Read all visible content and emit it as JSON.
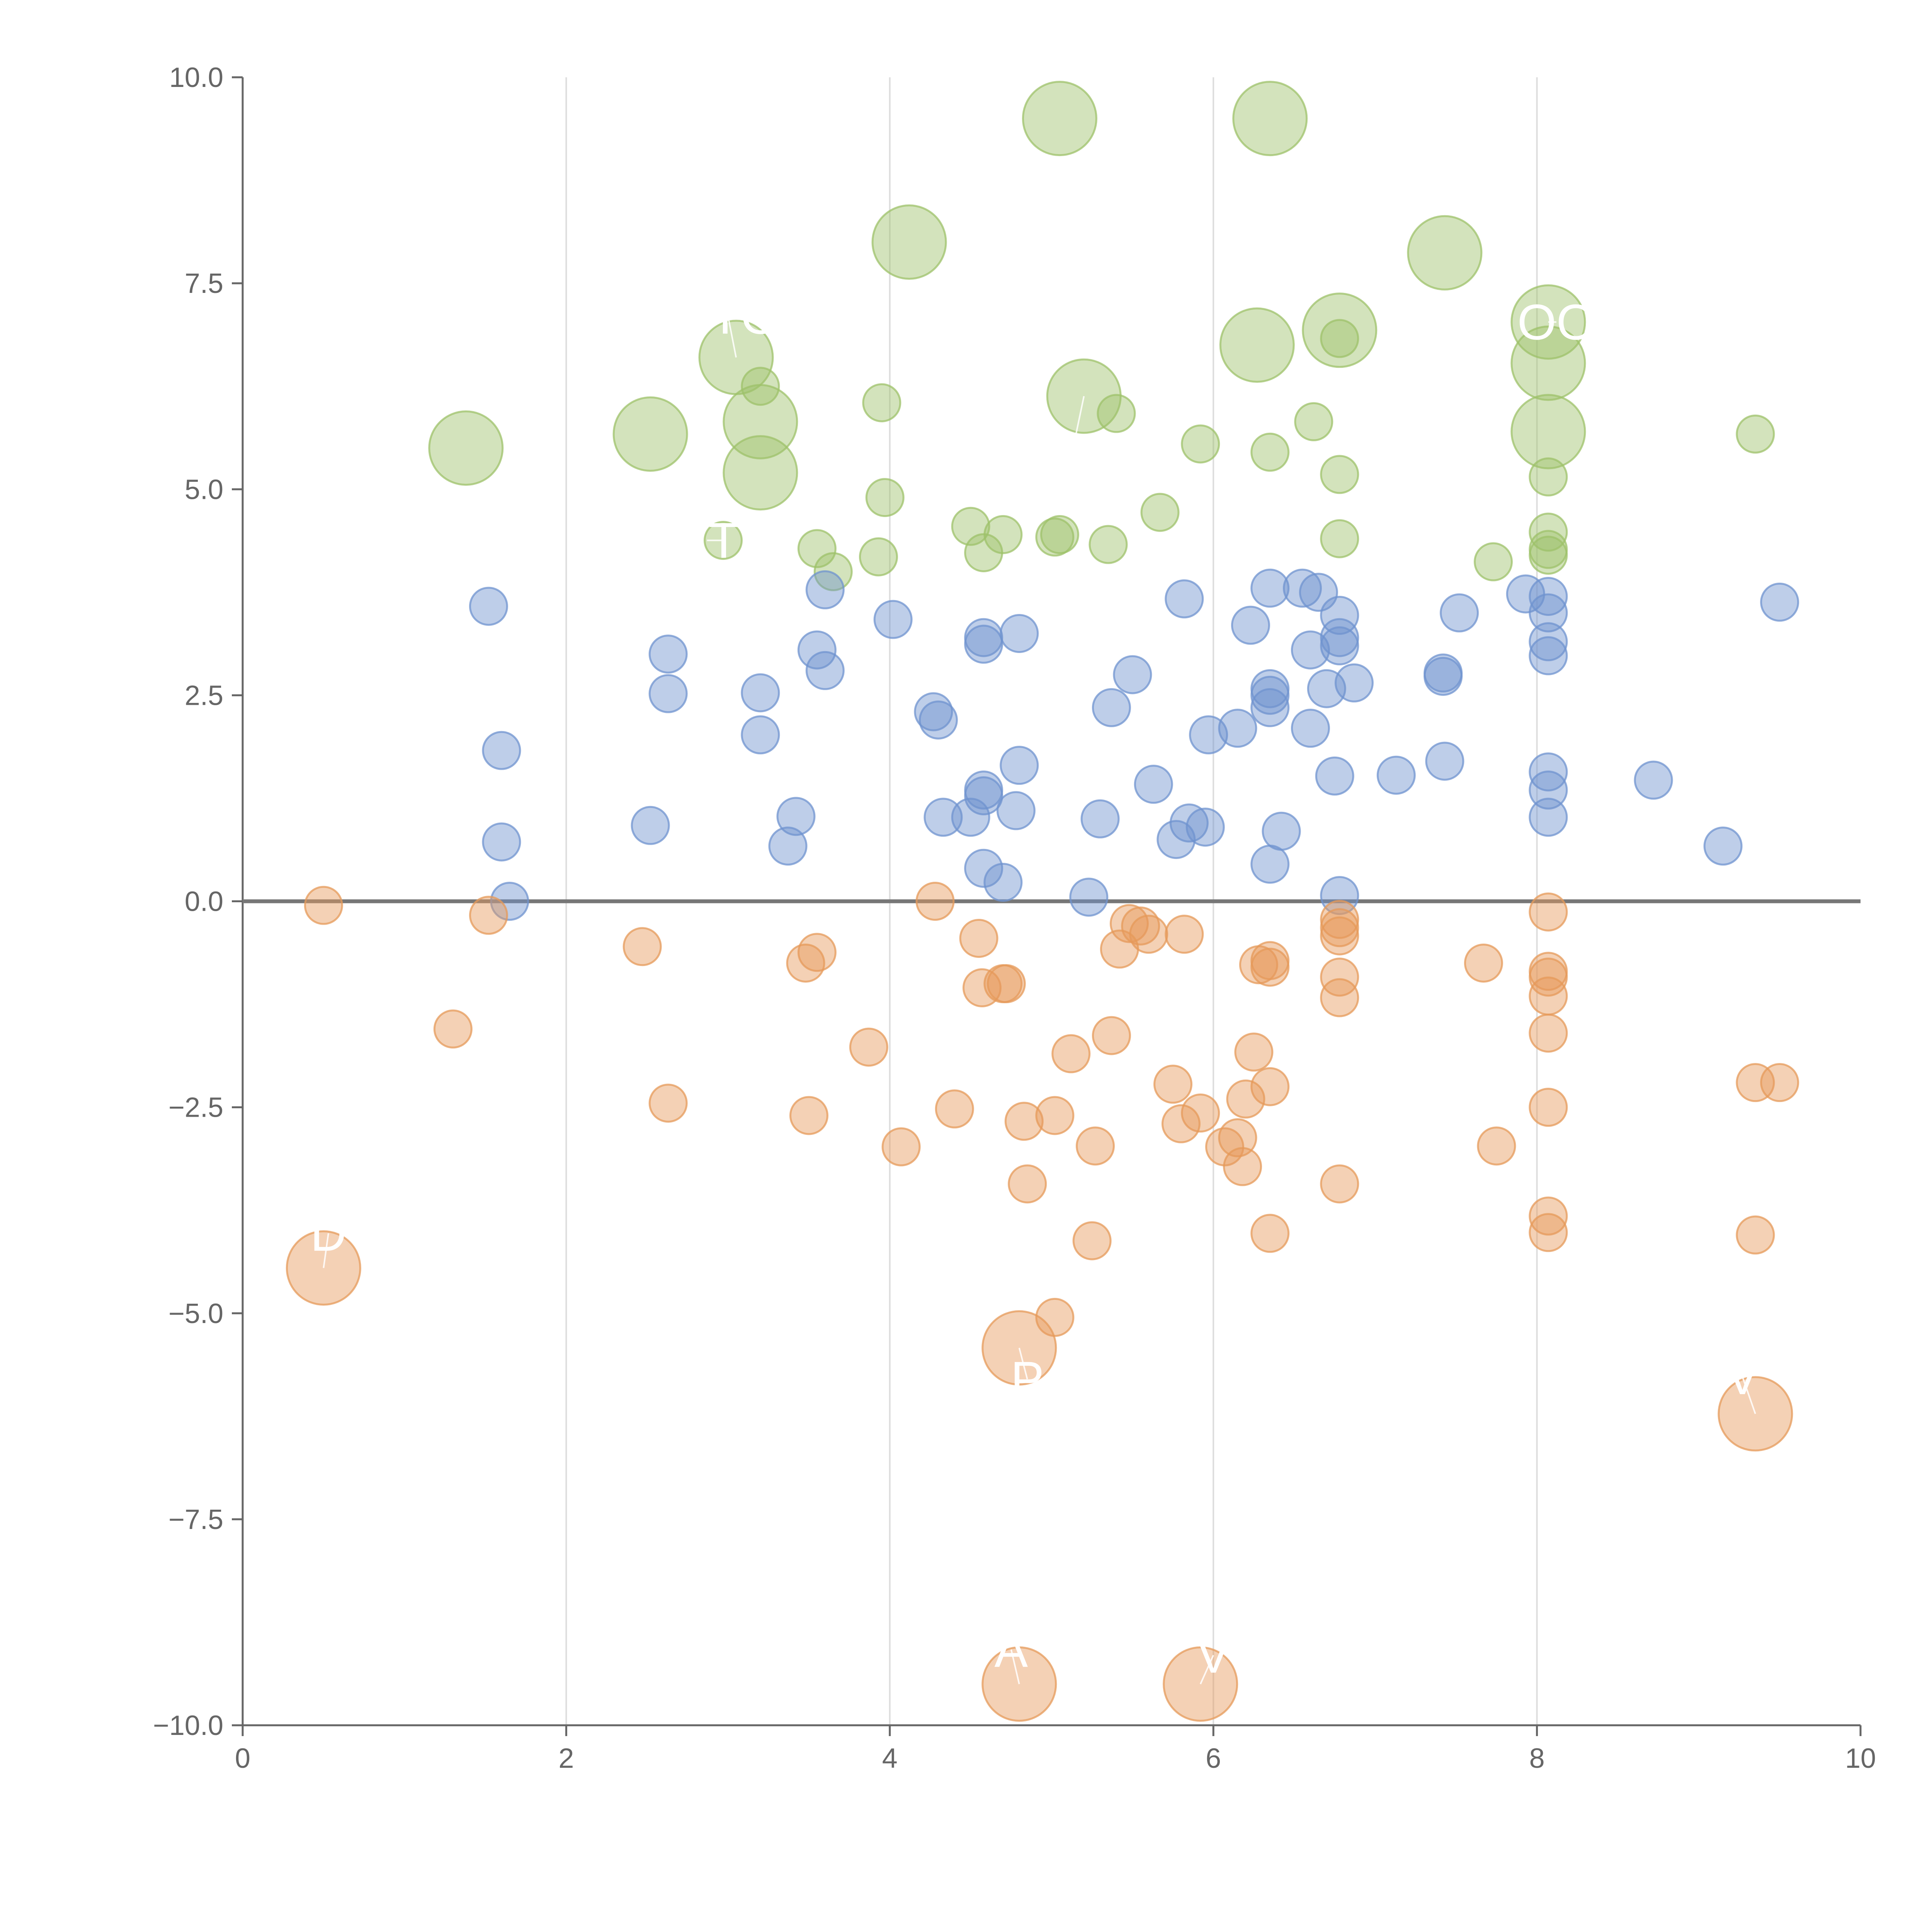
{
  "chart_data": {
    "type": "scatter",
    "title": "",
    "xlabel": "",
    "ylabel": "",
    "xlim": [
      0,
      10
    ],
    "ylim": [
      -10,
      10
    ],
    "x_ticks": [
      "0",
      "2",
      "4",
      "6",
      "8",
      "10"
    ],
    "y_ticks": [
      "10.0",
      "7.5",
      "5.0",
      "2.5",
      "0.0",
      "−2.5",
      "−5.0",
      "−7.5",
      "−10.0"
    ],
    "grid": {
      "vertical": true,
      "horizontal": false
    },
    "zero_line": true,
    "colors": {
      "green": "#9dc16a",
      "blue": "#6f93cf",
      "orange": "#e69a5a"
    },
    "series": [
      {
        "color": "#9dc16a",
        "points": [
          [
            5.05,
            9.5,
            "l"
          ],
          [
            6.35,
            9.5,
            "l"
          ],
          [
            4.12,
            8.0,
            "l"
          ],
          [
            7.43,
            7.87,
            "l"
          ],
          [
            6.27,
            6.75,
            "l"
          ],
          [
            6.78,
            6.93,
            "l"
          ],
          [
            6.78,
            6.83,
            "s"
          ],
          [
            8.07,
            7.03,
            "l"
          ],
          [
            8.07,
            6.53,
            "l"
          ],
          [
            3.05,
            6.6,
            "l"
          ],
          [
            3.2,
            6.25,
            "s"
          ],
          [
            5.2,
            6.13,
            "l"
          ],
          [
            3.2,
            5.82,
            "l"
          ],
          [
            2.52,
            5.67,
            "l"
          ],
          [
            8.07,
            5.7,
            "l"
          ],
          [
            1.38,
            5.5,
            "l"
          ],
          [
            3.2,
            5.2,
            "l"
          ],
          [
            3.95,
            6.05,
            "s"
          ],
          [
            5.4,
            5.92,
            "s"
          ],
          [
            6.62,
            5.82,
            "s"
          ],
          [
            5.92,
            5.55,
            "s"
          ],
          [
            6.35,
            5.45,
            "s"
          ],
          [
            9.35,
            5.67,
            "s"
          ],
          [
            6.78,
            5.18,
            "s"
          ],
          [
            8.07,
            5.15,
            "s"
          ],
          [
            3.97,
            4.9,
            "s"
          ],
          [
            5.67,
            4.72,
            "s"
          ],
          [
            4.5,
            4.55,
            "s"
          ],
          [
            4.7,
            4.45,
            "s"
          ],
          [
            5.02,
            4.42,
            "s"
          ],
          [
            5.05,
            4.45,
            "s"
          ],
          [
            8.07,
            4.48,
            "s"
          ],
          [
            6.78,
            4.4,
            "s"
          ],
          [
            5.35,
            4.33,
            "s"
          ],
          [
            3.55,
            4.28,
            "s"
          ],
          [
            4.58,
            4.23,
            "s"
          ],
          [
            8.07,
            4.27,
            "s"
          ],
          [
            8.07,
            4.2,
            "s"
          ],
          [
            3.93,
            4.18,
            "s"
          ],
          [
            7.73,
            4.12,
            "s"
          ],
          [
            2.97,
            4.38,
            "s"
          ],
          [
            3.65,
            4.0,
            "s"
          ]
        ]
      },
      {
        "color": "#6f93cf",
        "points": [
          [
            1.52,
            3.58
          ],
          [
            3.6,
            3.78
          ],
          [
            4.02,
            3.42
          ],
          [
            5.82,
            3.67
          ],
          [
            6.35,
            3.8
          ],
          [
            6.55,
            3.8
          ],
          [
            6.65,
            3.75
          ],
          [
            6.78,
            3.47
          ],
          [
            7.52,
            3.5
          ],
          [
            7.93,
            3.73
          ],
          [
            8.07,
            3.7
          ],
          [
            8.07,
            3.5
          ],
          [
            8.07,
            3.15
          ],
          [
            8.07,
            2.98
          ],
          [
            9.5,
            3.63
          ],
          [
            2.63,
            3.0
          ],
          [
            3.55,
            3.05
          ],
          [
            4.58,
            3.2
          ],
          [
            4.58,
            3.12
          ],
          [
            4.8,
            3.25
          ],
          [
            6.23,
            3.35
          ],
          [
            6.6,
            3.05
          ],
          [
            6.78,
            3.2
          ],
          [
            6.78,
            3.1
          ],
          [
            3.6,
            2.8
          ],
          [
            2.63,
            2.52
          ],
          [
            3.2,
            2.53
          ],
          [
            5.5,
            2.75
          ],
          [
            6.35,
            2.58
          ],
          [
            6.35,
            2.5
          ],
          [
            6.35,
            2.35
          ],
          [
            6.7,
            2.58
          ],
          [
            6.87,
            2.65
          ],
          [
            7.42,
            2.77
          ],
          [
            7.42,
            2.73
          ],
          [
            4.27,
            2.3
          ],
          [
            4.3,
            2.2
          ],
          [
            5.37,
            2.35
          ],
          [
            6.15,
            2.1
          ],
          [
            6.6,
            2.1
          ],
          [
            5.97,
            2.02
          ],
          [
            3.2,
            2.02
          ],
          [
            1.6,
            1.83
          ],
          [
            4.8,
            1.65
          ],
          [
            6.75,
            1.52
          ],
          [
            7.13,
            1.53
          ],
          [
            7.43,
            1.7
          ],
          [
            8.07,
            1.57
          ],
          [
            8.07,
            1.35
          ],
          [
            8.72,
            1.47
          ],
          [
            5.63,
            1.42
          ],
          [
            4.58,
            1.35
          ],
          [
            4.58,
            1.28
          ],
          [
            3.42,
            1.03
          ],
          [
            4.33,
            1.02
          ],
          [
            4.5,
            1.02
          ],
          [
            4.78,
            1.1
          ],
          [
            5.3,
            1.0
          ],
          [
            5.85,
            0.95
          ],
          [
            5.95,
            0.9
          ],
          [
            5.77,
            0.75
          ],
          [
            6.42,
            0.85
          ],
          [
            8.07,
            1.02
          ],
          [
            2.52,
            0.92
          ],
          [
            1.6,
            0.72
          ],
          [
            3.37,
            0.67
          ],
          [
            9.15,
            0.67
          ],
          [
            4.58,
            0.4
          ],
          [
            4.7,
            0.23
          ],
          [
            6.35,
            0.45
          ],
          [
            5.23,
            0.05
          ],
          [
            1.65,
            0.0
          ],
          [
            6.78,
            0.07
          ]
        ]
      },
      {
        "color": "#e69a5a",
        "points": [
          [
            0.5,
            -0.05,
            "s"
          ],
          [
            1.52,
            -0.17,
            "s"
          ],
          [
            4.28,
            0.0,
            "s"
          ],
          [
            8.07,
            -0.13,
            "s"
          ],
          [
            5.48,
            -0.27,
            "s"
          ],
          [
            5.55,
            -0.3,
            "s"
          ],
          [
            5.6,
            -0.4,
            "s"
          ],
          [
            5.82,
            -0.4,
            "s"
          ],
          [
            6.78,
            -0.22,
            "s"
          ],
          [
            6.78,
            -0.32,
            "s"
          ],
          [
            6.78,
            -0.42,
            "s"
          ],
          [
            2.47,
            -0.55,
            "s"
          ],
          [
            3.55,
            -0.62,
            "s"
          ],
          [
            3.48,
            -0.75,
            "s"
          ],
          [
            4.55,
            -0.45,
            "s"
          ],
          [
            5.42,
            -0.58,
            "s"
          ],
          [
            6.28,
            -0.77,
            "s"
          ],
          [
            6.35,
            -0.72,
            "s"
          ],
          [
            6.35,
            -0.8,
            "s"
          ],
          [
            7.67,
            -0.75,
            "s"
          ],
          [
            8.07,
            -0.85,
            "s"
          ],
          [
            8.07,
            -0.92,
            "s"
          ],
          [
            6.78,
            -0.92,
            "s"
          ],
          [
            4.57,
            -1.05,
            "s"
          ],
          [
            4.7,
            -1.0,
            "s"
          ],
          [
            4.72,
            -1.0,
            "s"
          ],
          [
            6.78,
            -1.17,
            "s"
          ],
          [
            8.07,
            -1.15,
            "s"
          ],
          [
            1.3,
            -1.55,
            "s"
          ],
          [
            8.07,
            -1.6,
            "s"
          ],
          [
            3.87,
            -1.77,
            "s"
          ],
          [
            5.37,
            -1.63,
            "s"
          ],
          [
            5.12,
            -1.85,
            "s"
          ],
          [
            6.25,
            -1.83,
            "s"
          ],
          [
            5.75,
            -2.22,
            "s"
          ],
          [
            6.35,
            -2.25,
            "s"
          ],
          [
            6.2,
            -2.4,
            "s"
          ],
          [
            9.35,
            -2.2,
            "s"
          ],
          [
            9.5,
            -2.2,
            "s"
          ],
          [
            2.63,
            -2.45,
            "s"
          ],
          [
            3.5,
            -2.6,
            "s"
          ],
          [
            4.4,
            -2.52,
            "s"
          ],
          [
            4.83,
            -2.67,
            "s"
          ],
          [
            5.02,
            -2.6,
            "s"
          ],
          [
            5.92,
            -2.57,
            "s"
          ],
          [
            5.8,
            -2.7,
            "s"
          ],
          [
            8.07,
            -2.5,
            "s"
          ],
          [
            4.07,
            -2.98,
            "s"
          ],
          [
            5.27,
            -2.97,
            "s"
          ],
          [
            6.07,
            -2.98,
            "s"
          ],
          [
            6.15,
            -2.87,
            "s"
          ],
          [
            6.18,
            -3.22,
            "s"
          ],
          [
            7.75,
            -2.97,
            "s"
          ],
          [
            4.85,
            -3.43,
            "s"
          ],
          [
            6.78,
            -3.43,
            "s"
          ],
          [
            8.07,
            -3.82,
            "s"
          ],
          [
            8.07,
            -4.02,
            "s"
          ],
          [
            6.35,
            -4.03,
            "s"
          ],
          [
            5.25,
            -4.12,
            "s"
          ],
          [
            9.35,
            -4.05,
            "s"
          ],
          [
            0.5,
            -4.45,
            "l"
          ],
          [
            5.02,
            -5.05,
            "s"
          ],
          [
            4.8,
            -5.42,
            "l"
          ],
          [
            9.35,
            -6.22,
            "l"
          ],
          [
            4.8,
            -9.5,
            "l"
          ],
          [
            5.92,
            -9.5,
            "l"
          ]
        ]
      }
    ]
  },
  "labels": [
    {
      "text": "D",
      "x": 0.5,
      "y": -4.45,
      "dx": 0.03,
      "dy": 0.42
    },
    {
      "text": "BTG",
      "x": 3.05,
      "y": 6.6,
      "dx": -0.05,
      "dy": 0.5
    },
    {
      "text": "VT",
      "x": 2.97,
      "y": 4.38,
      "dx": -0.1,
      "dy": 0.0
    },
    {
      "text": "REL",
      "x": 5.2,
      "y": 6.13,
      "dx": -0.08,
      "dy": -0.75
    },
    {
      "text": "OO",
      "x": 8.07,
      "y": 7.03,
      "dx": 0.05,
      "dy": 0.0
    },
    {
      "text": "P",
      "x": 4.8,
      "y": -5.42,
      "dx": 0.05,
      "dy": -0.38
    },
    {
      "text": "V",
      "x": 5.92,
      "y": -9.5,
      "dx": 0.08,
      "dy": 0.35
    },
    {
      "text": "V",
      "x": 9.35,
      "y": -6.22,
      "dx": -0.08,
      "dy": 0.45
    },
    {
      "text": "A",
      "x": 4.8,
      "y": -9.5,
      "dx": -0.05,
      "dy": 0.42
    }
  ]
}
